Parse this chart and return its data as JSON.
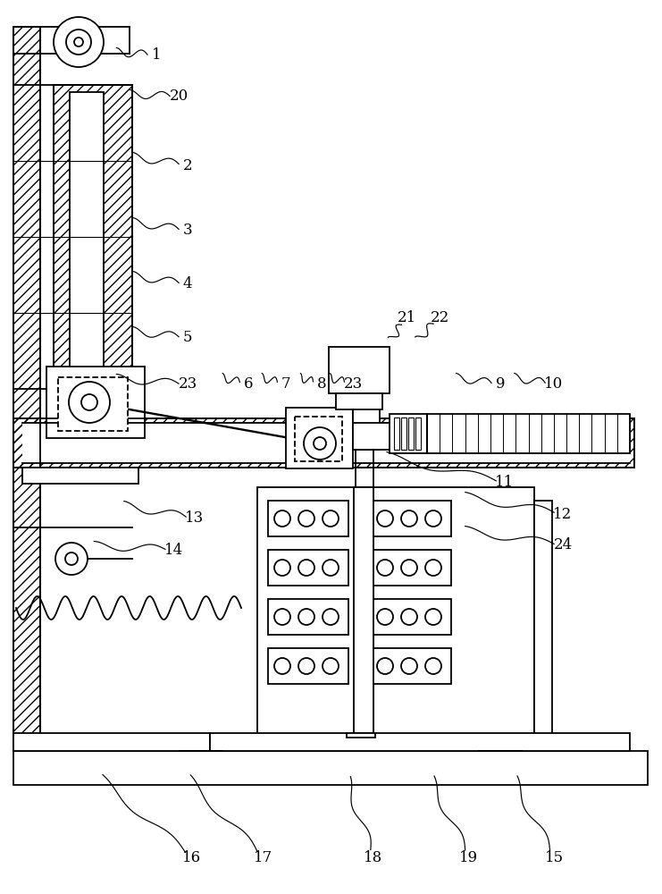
{
  "bg": "#ffffff",
  "lc": "#000000",
  "lw": 1.3,
  "figsize": [
    7.41,
    10.0
  ],
  "dpi": 100,
  "labels": [
    [
      "1",
      175,
      62,
      130,
      58
    ],
    [
      "20",
      200,
      108,
      145,
      105
    ],
    [
      "2",
      210,
      185,
      148,
      175
    ],
    [
      "3",
      210,
      258,
      148,
      248
    ],
    [
      "4",
      210,
      318,
      148,
      308
    ],
    [
      "5",
      210,
      378,
      148,
      370
    ],
    [
      "23",
      210,
      430,
      130,
      423
    ],
    [
      "6",
      278,
      430,
      248,
      422
    ],
    [
      "7",
      320,
      430,
      292,
      422
    ],
    [
      "8",
      360,
      430,
      335,
      422
    ],
    [
      "23",
      395,
      430,
      368,
      422
    ],
    [
      "21",
      455,
      355,
      438,
      380
    ],
    [
      "22",
      492,
      355,
      468,
      380
    ],
    [
      "9",
      560,
      430,
      510,
      422
    ],
    [
      "10",
      620,
      430,
      575,
      422
    ],
    [
      "11",
      565,
      540,
      432,
      510
    ],
    [
      "12",
      630,
      575,
      520,
      555
    ],
    [
      "24",
      630,
      610,
      520,
      593
    ],
    [
      "13",
      218,
      580,
      138,
      565
    ],
    [
      "14",
      195,
      615,
      105,
      610
    ],
    [
      "16",
      215,
      960,
      112,
      870
    ],
    [
      "17",
      295,
      960,
      210,
      870
    ],
    [
      "18",
      418,
      960,
      388,
      870
    ],
    [
      "19",
      525,
      960,
      482,
      870
    ],
    [
      "15",
      620,
      960,
      575,
      870
    ]
  ]
}
